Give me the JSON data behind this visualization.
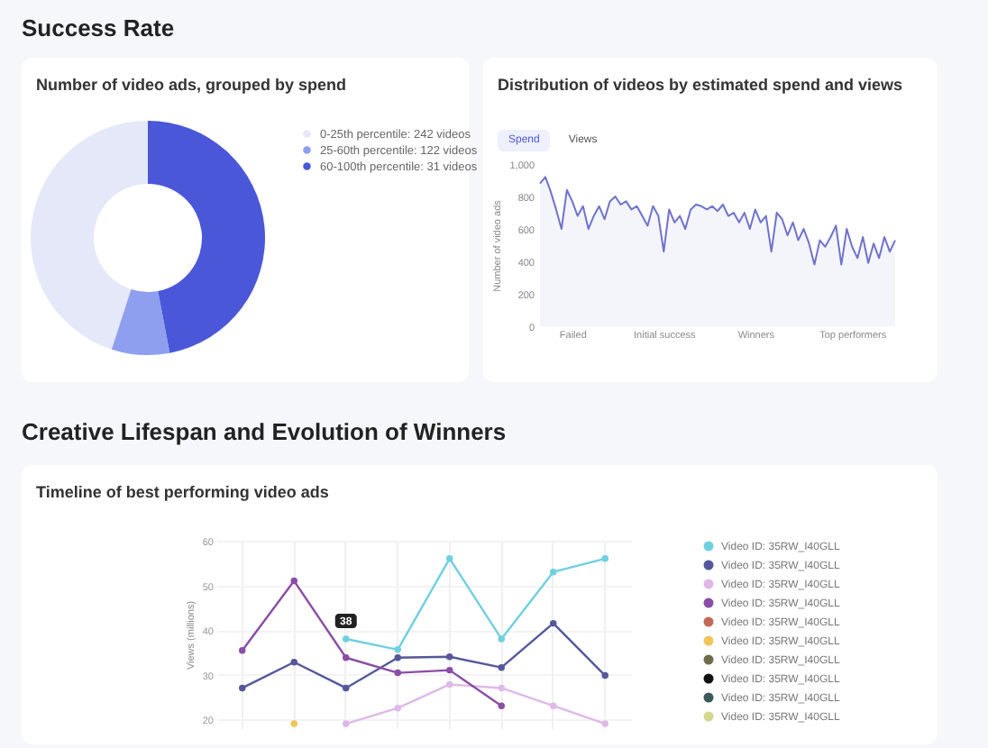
{
  "chart_data": [
    {
      "type": "donut",
      "title": "Number of video ads, grouped by spend",
      "annotations": [
        "Success Rate"
      ],
      "categories": [
        "0-25th percentile: 242 videos",
        "25-60th percentile: 122 videos",
        "60-100th percentile: 31 videos"
      ],
      "values": [
        45,
        8,
        47
      ],
      "colors": [
        "#e4e8f8",
        "#8e9ff0",
        "#4a57d9"
      ],
      "legend": "right"
    },
    {
      "type": "area",
      "title": "Distribution of videos by estimated spend and views",
      "annotations": [
        "Spend",
        "Views"
      ],
      "ylabel": "Number of video ads",
      "color": "#6f73cc",
      "categories": [
        null,
        null,
        null,
        null,
        null,
        null,
        "Failed",
        null,
        null,
        null,
        null,
        null,
        null,
        null,
        null,
        null,
        null,
        null,
        null,
        null,
        null,
        null,
        null,
        "Initial success",
        null,
        null,
        null,
        null,
        null,
        null,
        null,
        null,
        null,
        null,
        null,
        null,
        null,
        null,
        null,
        null,
        "Winners",
        null,
        null,
        null,
        null,
        null,
        null,
        null,
        null,
        null,
        null,
        null,
        null,
        null,
        null,
        null,
        null,
        null,
        "Top performers",
        null,
        null,
        null,
        null,
        null,
        null,
        null,
        null
      ],
      "values": [
        880,
        920,
        830,
        720,
        600,
        840,
        770,
        680,
        740,
        600,
        680,
        740,
        660,
        770,
        800,
        750,
        770,
        720,
        740,
        680,
        620,
        740,
        680,
        460,
        720,
        640,
        680,
        600,
        720,
        750,
        740,
        720,
        740,
        710,
        750,
        680,
        700,
        640,
        700,
        600,
        720,
        640,
        680,
        460,
        700,
        660,
        560,
        640,
        530,
        600,
        510,
        380,
        530,
        490,
        550,
        620,
        380,
        600,
        490,
        420,
        550,
        390,
        510,
        420,
        550,
        460,
        530
      ],
      "ylim": [
        0,
        1000
      ],
      "yticks": [
        0,
        200,
        400,
        600,
        800,
        {
          "value": 1000,
          "label": "1,000"
        }
      ]
    },
    {
      "type": "line",
      "title": "Timeline of best performing video ads",
      "annotations": [
        "Creative Lifespan and Evolution of Winners"
      ],
      "ylabel": "Views (millions)",
      "categories": [
        null,
        null,
        null,
        null,
        null,
        null,
        null,
        null
      ],
      "ylim": [
        18,
        60
      ],
      "yticks": [
        20,
        30,
        40,
        50,
        60
      ],
      "tick_labels": "y",
      "grid": true,
      "marker": "circle",
      "legend": "right",
      "series": [
        {
          "name": "Video ID: 35RW_I40GLL",
          "color": "#6fd0df",
          "values": [
            null,
            null,
            38,
            35.6,
            56,
            38,
            53,
            56
          ],
          "value_labels": [
            null,
            null,
            "38",
            null,
            null,
            null,
            null,
            null
          ]
        },
        {
          "name": "Video ID: 35RW_I40GLL",
          "color": "#55579a",
          "values": [
            27,
            32.8,
            27,
            33.8,
            34,
            31.6,
            41.5,
            29.8
          ]
        },
        {
          "name": "Video ID: 35RW_I40GLL",
          "color": "#dfb8e8",
          "values": [
            null,
            null,
            19,
            22.5,
            27.8,
            27,
            23,
            19
          ]
        },
        {
          "name": "Video ID: 35RW_I40GLL",
          "color": "#8a4ea6",
          "values": [
            35.4,
            51,
            33.8,
            30.4,
            31,
            23,
            null,
            null
          ]
        },
        {
          "name": "Video ID: 35RW_I40GLL",
          "color": "#c46a5a",
          "values": [
            null,
            null,
            null,
            null,
            null,
            null,
            null,
            null
          ]
        },
        {
          "name": "Video ID: 35RW_I40GLL",
          "color": "#f0c45a",
          "values": [
            null,
            19,
            null,
            null,
            null,
            null,
            null,
            null
          ]
        },
        {
          "name": "Video ID: 35RW_I40GLL",
          "color": "#6e6c4c",
          "values": [
            null,
            null,
            null,
            null,
            null,
            null,
            null,
            null
          ]
        },
        {
          "name": "Video ID: 35RW_I40GLL",
          "color": "#111111",
          "values": [
            null,
            null,
            null,
            null,
            null,
            null,
            null,
            null
          ]
        },
        {
          "name": "Video ID: 35RW_I40GLL",
          "color": "#3c5a5c",
          "values": [
            null,
            null,
            null,
            null,
            null,
            null,
            null,
            null
          ]
        },
        {
          "name": "Video ID: 35RW_I40GLL",
          "color": "#d6d68e",
          "values": [
            null,
            null,
            null,
            null,
            null,
            null,
            null,
            null
          ]
        }
      ]
    }
  ]
}
